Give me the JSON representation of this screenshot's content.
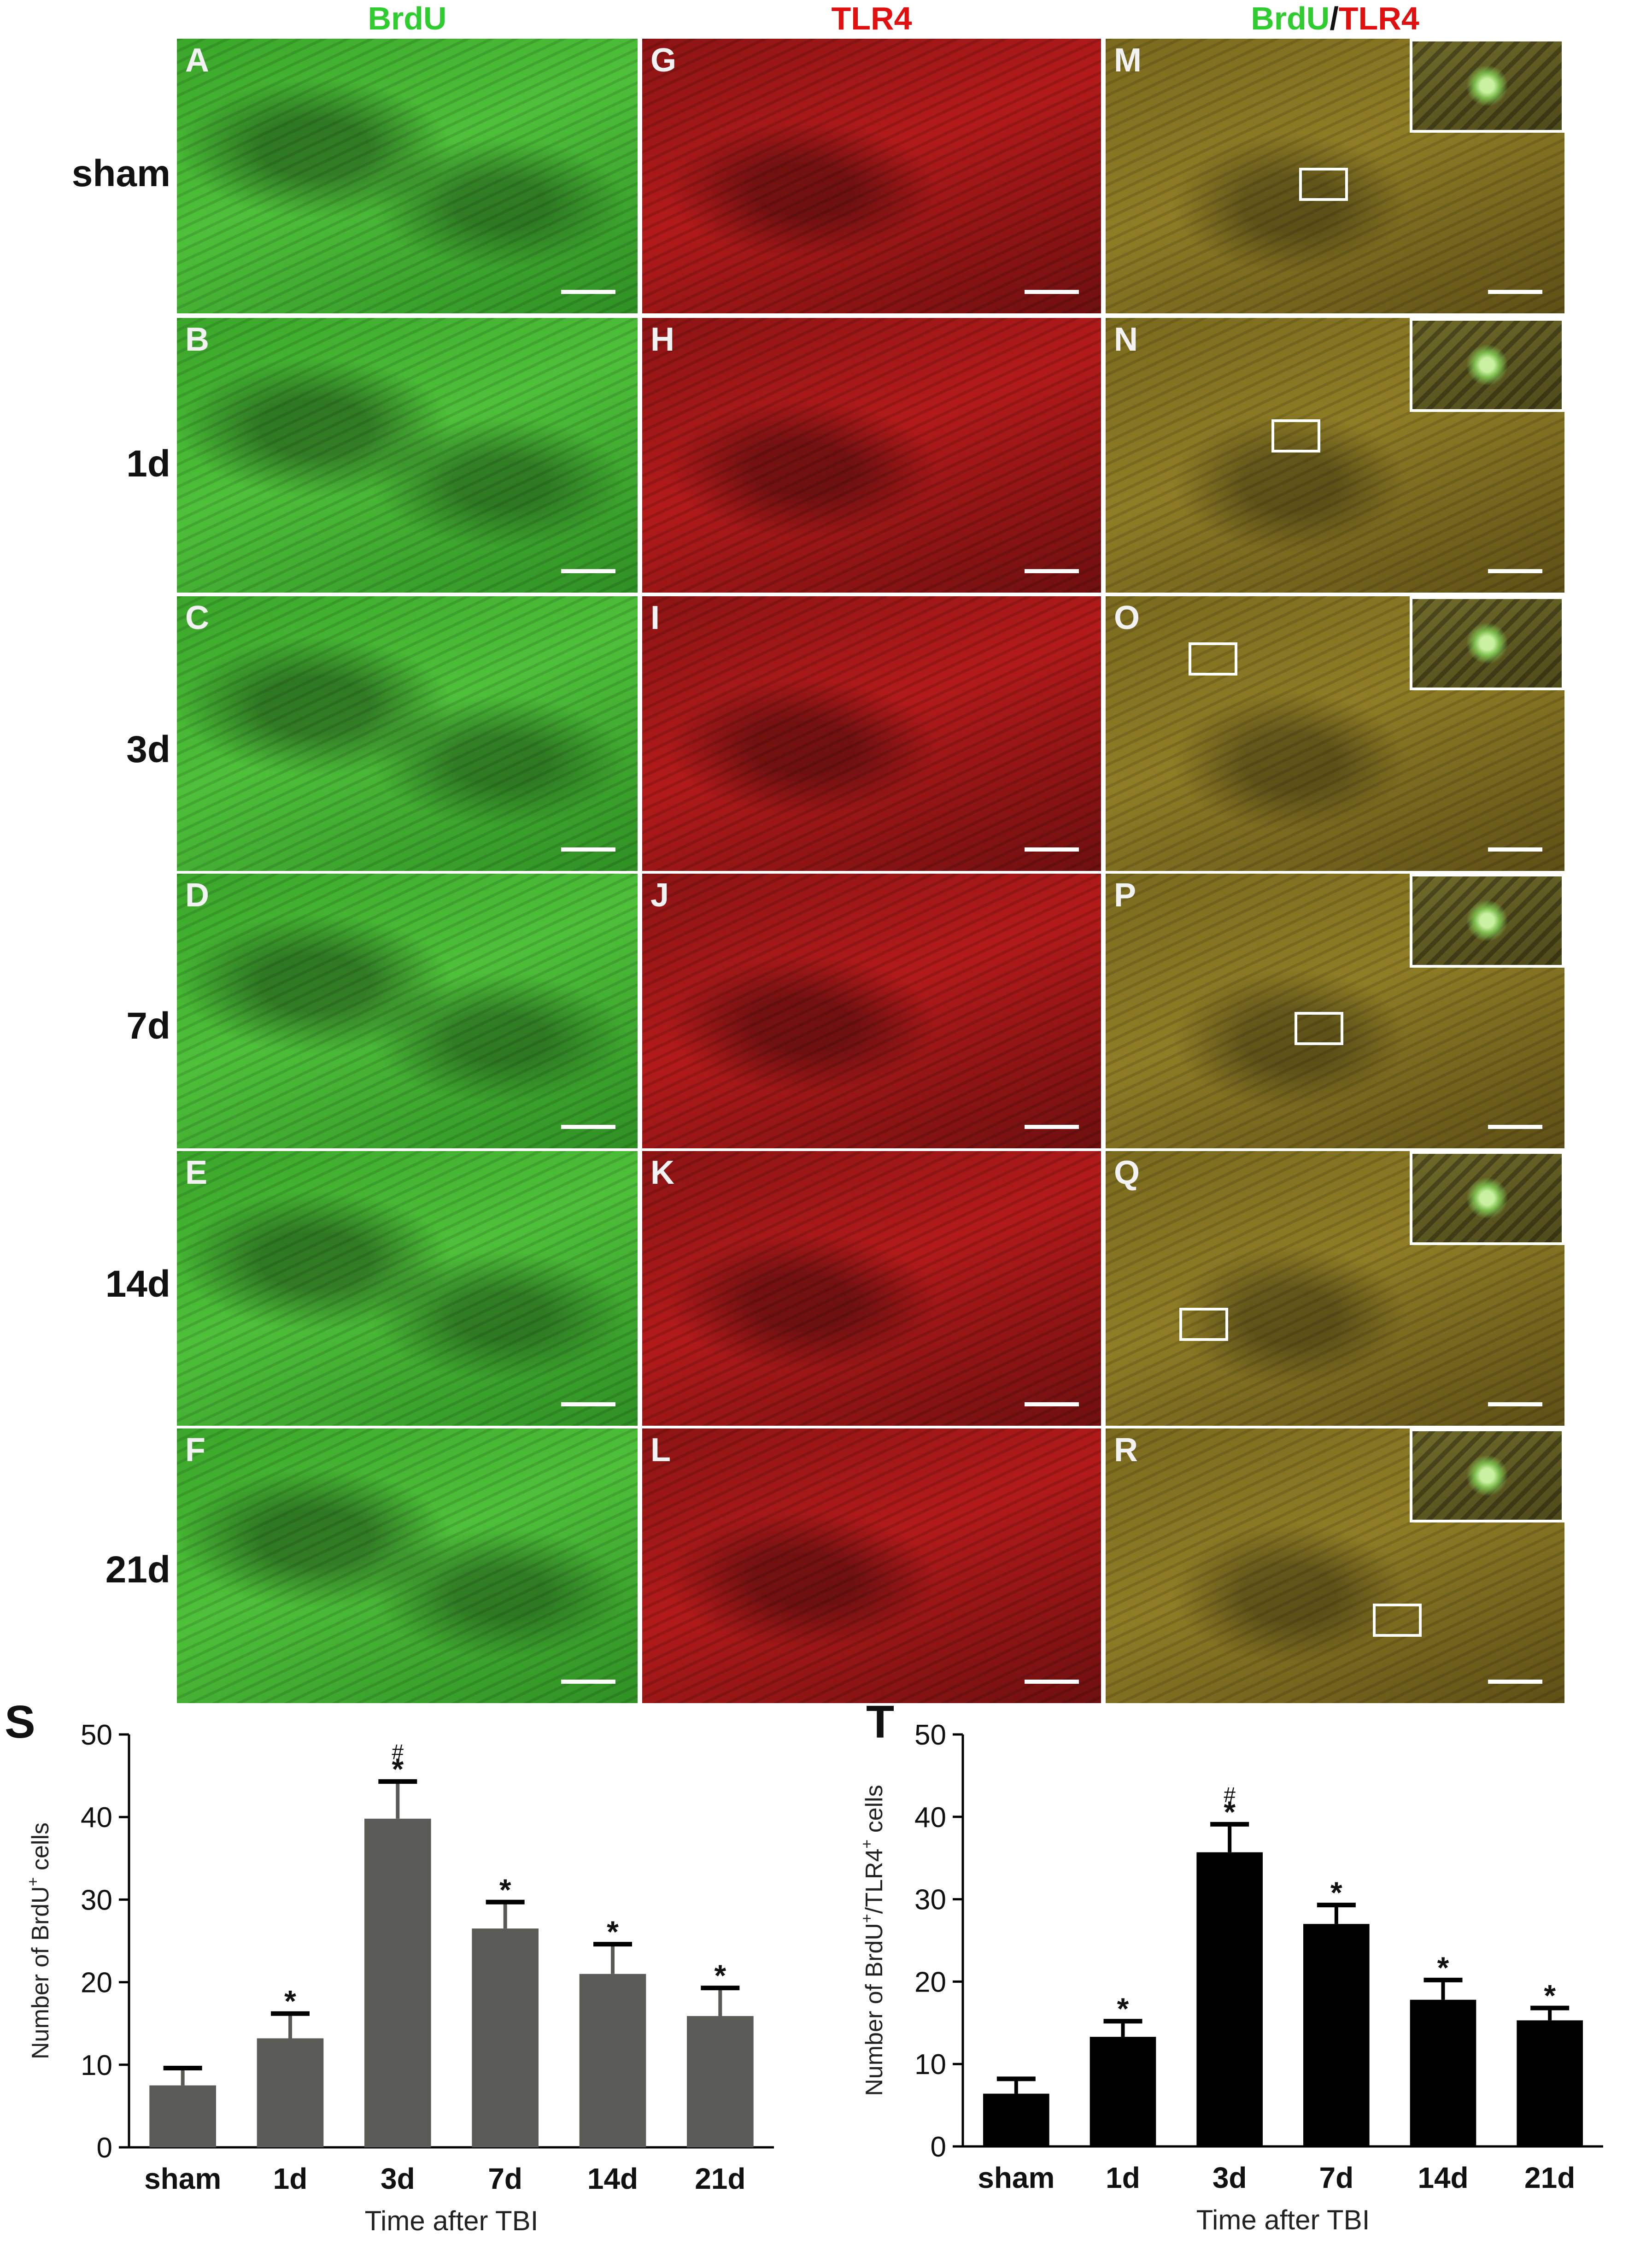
{
  "column_headers": [
    {
      "text_green": "BrdU",
      "text_slash": "",
      "text_red": ""
    },
    {
      "text_green": "",
      "text_slash": "",
      "text_red": "TLR4"
    },
    {
      "text_green": "BrdU",
      "text_slash": "/",
      "text_red": "TLR4"
    }
  ],
  "colors": {
    "brdu_green": "#2ecc2e",
    "tlr4_red": "#e01010",
    "bar_S": "#5a5b56",
    "bar_T": "#000000"
  },
  "row_labels": [
    "sham",
    "1d",
    "3d",
    "7d",
    "14d",
    "21d"
  ],
  "panel_letters": [
    [
      "A",
      "G",
      "M"
    ],
    [
      "B",
      "H",
      "N"
    ],
    [
      "C",
      "I",
      "O"
    ],
    [
      "D",
      "J",
      "P"
    ],
    [
      "E",
      "K",
      "Q"
    ],
    [
      "F",
      "L",
      "R"
    ]
  ],
  "chart_tags": [
    "S",
    "T"
  ],
  "chart_data": [
    {
      "type": "bar",
      "panel": "S",
      "categories": [
        "sham",
        "1d",
        "3d",
        "7d",
        "14d",
        "21d"
      ],
      "values": [
        7.5,
        13.2,
        39.8,
        26.5,
        21.0,
        15.9
      ],
      "errors": [
        2.1,
        3.0,
        4.5,
        3.2,
        3.6,
        3.4
      ],
      "annotations": [
        "",
        "*",
        "*#",
        "*",
        "*",
        "*"
      ],
      "xlabel": "Time after TBI",
      "ylabel": "Number of BrdU+ cells",
      "ylabel_parts": [
        "Number of BrdU",
        "+",
        " cells"
      ],
      "ylim": [
        0,
        50
      ],
      "yticks": [
        "0",
        "10",
        "20",
        "30",
        "40",
        "50"
      ],
      "bar_color": "#5a5b56"
    },
    {
      "type": "bar",
      "panel": "T",
      "categories": [
        "sham",
        "1d",
        "3d",
        "7d",
        "14d",
        "21d"
      ],
      "values": [
        6.4,
        13.3,
        35.7,
        27.0,
        17.8,
        15.3
      ],
      "errors": [
        1.8,
        1.9,
        3.4,
        2.3,
        2.4,
        1.5
      ],
      "annotations": [
        "",
        "*",
        "*#",
        "*",
        "*",
        "*"
      ],
      "xlabel": "Time after TBI",
      "ylabel": "Number of BrdU+/TLR4+ cells",
      "ylabel_parts": [
        "Number of BrdU",
        "+",
        "/TLR4",
        "+",
        " cells"
      ],
      "ylim": [
        0,
        50
      ],
      "yticks": [
        "0",
        "10",
        "20",
        "30",
        "40",
        "50"
      ],
      "bar_color": "#000000"
    }
  ]
}
